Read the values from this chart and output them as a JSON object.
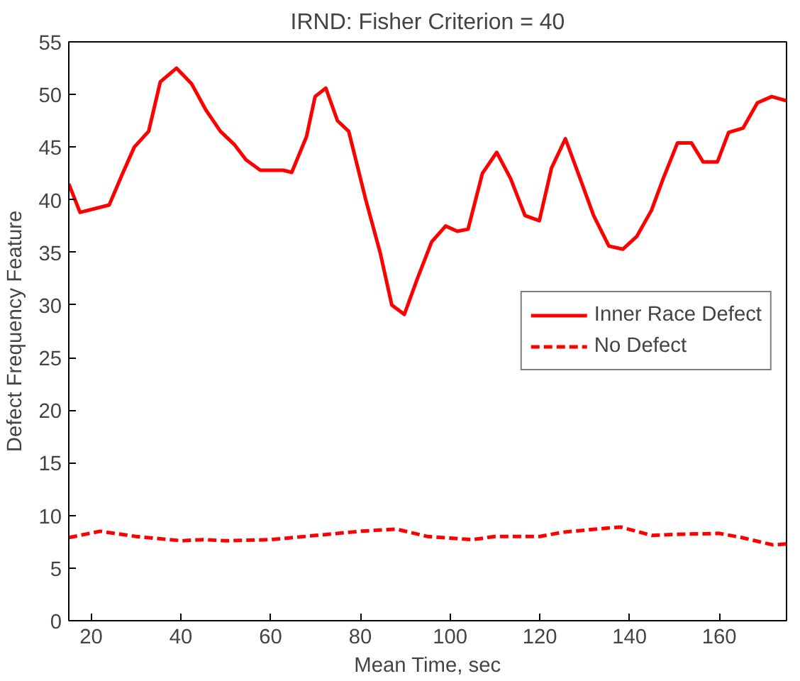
{
  "chart_data": {
    "type": "line",
    "title": "IRND: Fisher Criterion = 40",
    "xlabel": "Mean Time, sec",
    "ylabel": "Defect Frequency Feature",
    "xlim": [
      15,
      175
    ],
    "xticks": [
      20,
      40,
      60,
      80,
      100,
      120,
      140,
      160
    ],
    "ylim": [
      0,
      55
    ],
    "yticks": [
      0,
      5,
      10,
      15,
      20,
      25,
      30,
      35,
      40,
      45,
      50,
      55
    ],
    "grid": false,
    "legend": "center right",
    "series": [
      {
        "name": "Inner Race Defect",
        "color": "#ff0000",
        "line_style": "solid",
        "x": [
          15,
          17.5,
          24,
          27,
          29.6,
          32.8,
          35.4,
          39,
          42.4,
          45.6,
          48.8,
          52,
          54.5,
          57.7,
          62.8,
          64.7,
          68,
          69.9,
          72.3,
          74.9,
          77.4,
          81.2,
          84.4,
          87,
          89.8,
          92.7,
          95.9,
          99,
          101.6,
          104,
          107.2,
          110.4,
          113.5,
          116.7,
          119.9,
          122.6,
          125.7,
          129,
          132,
          135.4,
          138.5,
          141.6,
          144.9,
          147.5,
          150.7,
          153.8,
          156.4,
          159.6,
          162.1,
          165.3,
          168.5,
          171.7,
          175
        ],
        "values": [
          41.5,
          38.8,
          39.5,
          42.5,
          45,
          46.5,
          51.2,
          52.5,
          51,
          48.5,
          46.5,
          45.2,
          43.8,
          42.8,
          42.8,
          42.6,
          46,
          49.8,
          50.6,
          47.5,
          46.5,
          40,
          35,
          30,
          29.1,
          32.5,
          36,
          37.5,
          37,
          37.2,
          42.5,
          44.5,
          42,
          38.5,
          38,
          43,
          45.8,
          42,
          38.5,
          35.6,
          35.3,
          36.5,
          39,
          42,
          45.4,
          45.4,
          43.6,
          43.6,
          46.4,
          46.8,
          49.2,
          49.8,
          49.4
        ]
      },
      {
        "name": "No Defect",
        "color": "#ff0000",
        "line_style": "dashed",
        "x": [
          15,
          22,
          30,
          40,
          45,
          50,
          60,
          70,
          80,
          88,
          95,
          105,
          110,
          120,
          125,
          135,
          138,
          145,
          150,
          160,
          165,
          172,
          175
        ],
        "values": [
          7.9,
          8.5,
          8.0,
          7.6,
          7.7,
          7.6,
          7.7,
          8.1,
          8.5,
          8.7,
          8.0,
          7.7,
          8.0,
          8.0,
          8.4,
          8.8,
          8.9,
          8.1,
          8.2,
          8.3,
          7.9,
          7.2,
          7.3
        ]
      }
    ]
  }
}
